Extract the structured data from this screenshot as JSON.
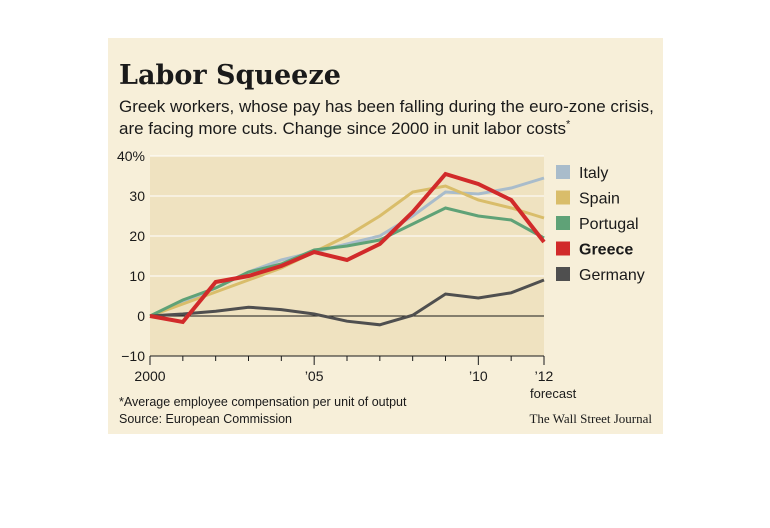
{
  "title": "Labor Squeeze",
  "subtitle": "Greek workers, whose pay has been falling during the euro-zone crisis, are facing more cuts. Change since 2000 in unit labor costs",
  "subtitle_mark": "*",
  "footnote": "*Average employee compensation per unit of output",
  "source": "Source: European Commission",
  "credit": "The Wall Street Journal",
  "forecast_label": "forecast",
  "chart_data": {
    "type": "line",
    "x": [
      2000,
      2001,
      2002,
      2003,
      2004,
      2005,
      2006,
      2007,
      2008,
      2009,
      2010,
      2011,
      2012
    ],
    "xlim": [
      2000,
      2012
    ],
    "ylim": [
      -10,
      40
    ],
    "yticks": [
      -10,
      0,
      10,
      20,
      30,
      40
    ],
    "ytick_labels": [
      "−10",
      "0",
      "10",
      "20",
      "30",
      "40%"
    ],
    "xtick_labels": [
      {
        "x": 2000,
        "label": "2000"
      },
      {
        "x": 2005,
        "label": "’05"
      },
      {
        "x": 2010,
        "label": "’10"
      },
      {
        "x": 2012,
        "label": "’12"
      }
    ],
    "plot_background": "#efe2c0",
    "legend_position": "right",
    "series": [
      {
        "name": "Italy",
        "color": "#a9bccb",
        "values": [
          0,
          3.5,
          7,
          11,
          14,
          16,
          18,
          20,
          25,
          31,
          30.5,
          32,
          34.5
        ]
      },
      {
        "name": "Spain",
        "color": "#d9bd6a",
        "values": [
          0,
          3,
          6,
          9,
          12,
          16,
          20,
          25,
          31,
          32.5,
          29,
          27,
          24.5
        ]
      },
      {
        "name": "Portugal",
        "color": "#5fa277",
        "values": [
          0,
          4,
          7,
          11,
          13,
          16.5,
          17.5,
          19,
          23,
          27,
          25,
          24,
          19.5
        ]
      },
      {
        "name": "Greece",
        "color": "#d12a2a",
        "values": [
          0,
          -1.5,
          8.5,
          10,
          12.5,
          16,
          14,
          18,
          26,
          35.5,
          33,
          29,
          18.5
        ]
      },
      {
        "name": "Germany",
        "color": "#4f4f4f",
        "values": [
          0,
          0.5,
          1.2,
          2.2,
          1.6,
          0.5,
          -1.3,
          -2.2,
          0.2,
          5.5,
          4.5,
          5.8,
          9
        ]
      }
    ]
  }
}
